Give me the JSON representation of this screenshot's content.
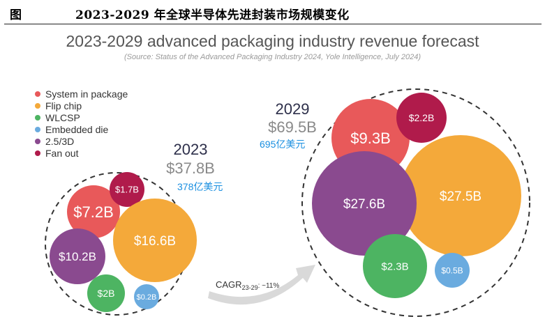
{
  "figure": {
    "label": "图",
    "title": "2023-2029 年全球半导体先进封装市场规模变化"
  },
  "chart_data": {
    "type": "bubble",
    "title": "2023-2029 advanced packaging industry revenue forecast",
    "subtitle": "(Source: Status of the Advanced Packaging Industry 2024, Yole Intelligence, July 2024)",
    "legend": [
      {
        "name": "System in package",
        "color": "#e8595a"
      },
      {
        "name": "Flip chip",
        "color": "#f4a93a"
      },
      {
        "name": "WLCSP",
        "color": "#4db462"
      },
      {
        "name": "Embedded die",
        "color": "#6aabdf"
      },
      {
        "name": "2.5/3D",
        "color": "#8a4a8f"
      },
      {
        "name": "Fan out",
        "color": "#b01b4b"
      }
    ],
    "groups": [
      {
        "year": "2023",
        "total": "$37.8B",
        "total_value": 37.8,
        "note": "378亿美元",
        "segments": [
          {
            "name": "System in package",
            "value": 7.2,
            "label": "$7.2B"
          },
          {
            "name": "Fan out",
            "value": 1.7,
            "label": "$1.7B"
          },
          {
            "name": "Flip chip",
            "value": 16.6,
            "label": "$16.6B"
          },
          {
            "name": "2.5/3D",
            "value": 10.2,
            "label": "$10.2B"
          },
          {
            "name": "WLCSP",
            "value": 2.0,
            "label": "$2B"
          },
          {
            "name": "Embedded die",
            "value": 0.2,
            "label": "$0.2B"
          }
        ]
      },
      {
        "year": "2029",
        "total": "$69.5B",
        "total_value": 69.5,
        "note": "695亿美元",
        "segments": [
          {
            "name": "System in package",
            "value": 9.3,
            "label": "$9.3B"
          },
          {
            "name": "Fan out",
            "value": 2.2,
            "label": "$2.2B"
          },
          {
            "name": "Flip chip",
            "value": 27.5,
            "label": "$27.5B"
          },
          {
            "name": "2.5/3D",
            "value": 27.6,
            "label": "$27.6B"
          },
          {
            "name": "WLCSP",
            "value": 2.3,
            "label": "$2.3B"
          },
          {
            "name": "Embedded die",
            "value": 0.5,
            "label": "$0.5B"
          }
        ]
      }
    ],
    "cagr": {
      "prefix": "CAGR",
      "sub": "23-29",
      "suffix": ": ~11%"
    }
  }
}
